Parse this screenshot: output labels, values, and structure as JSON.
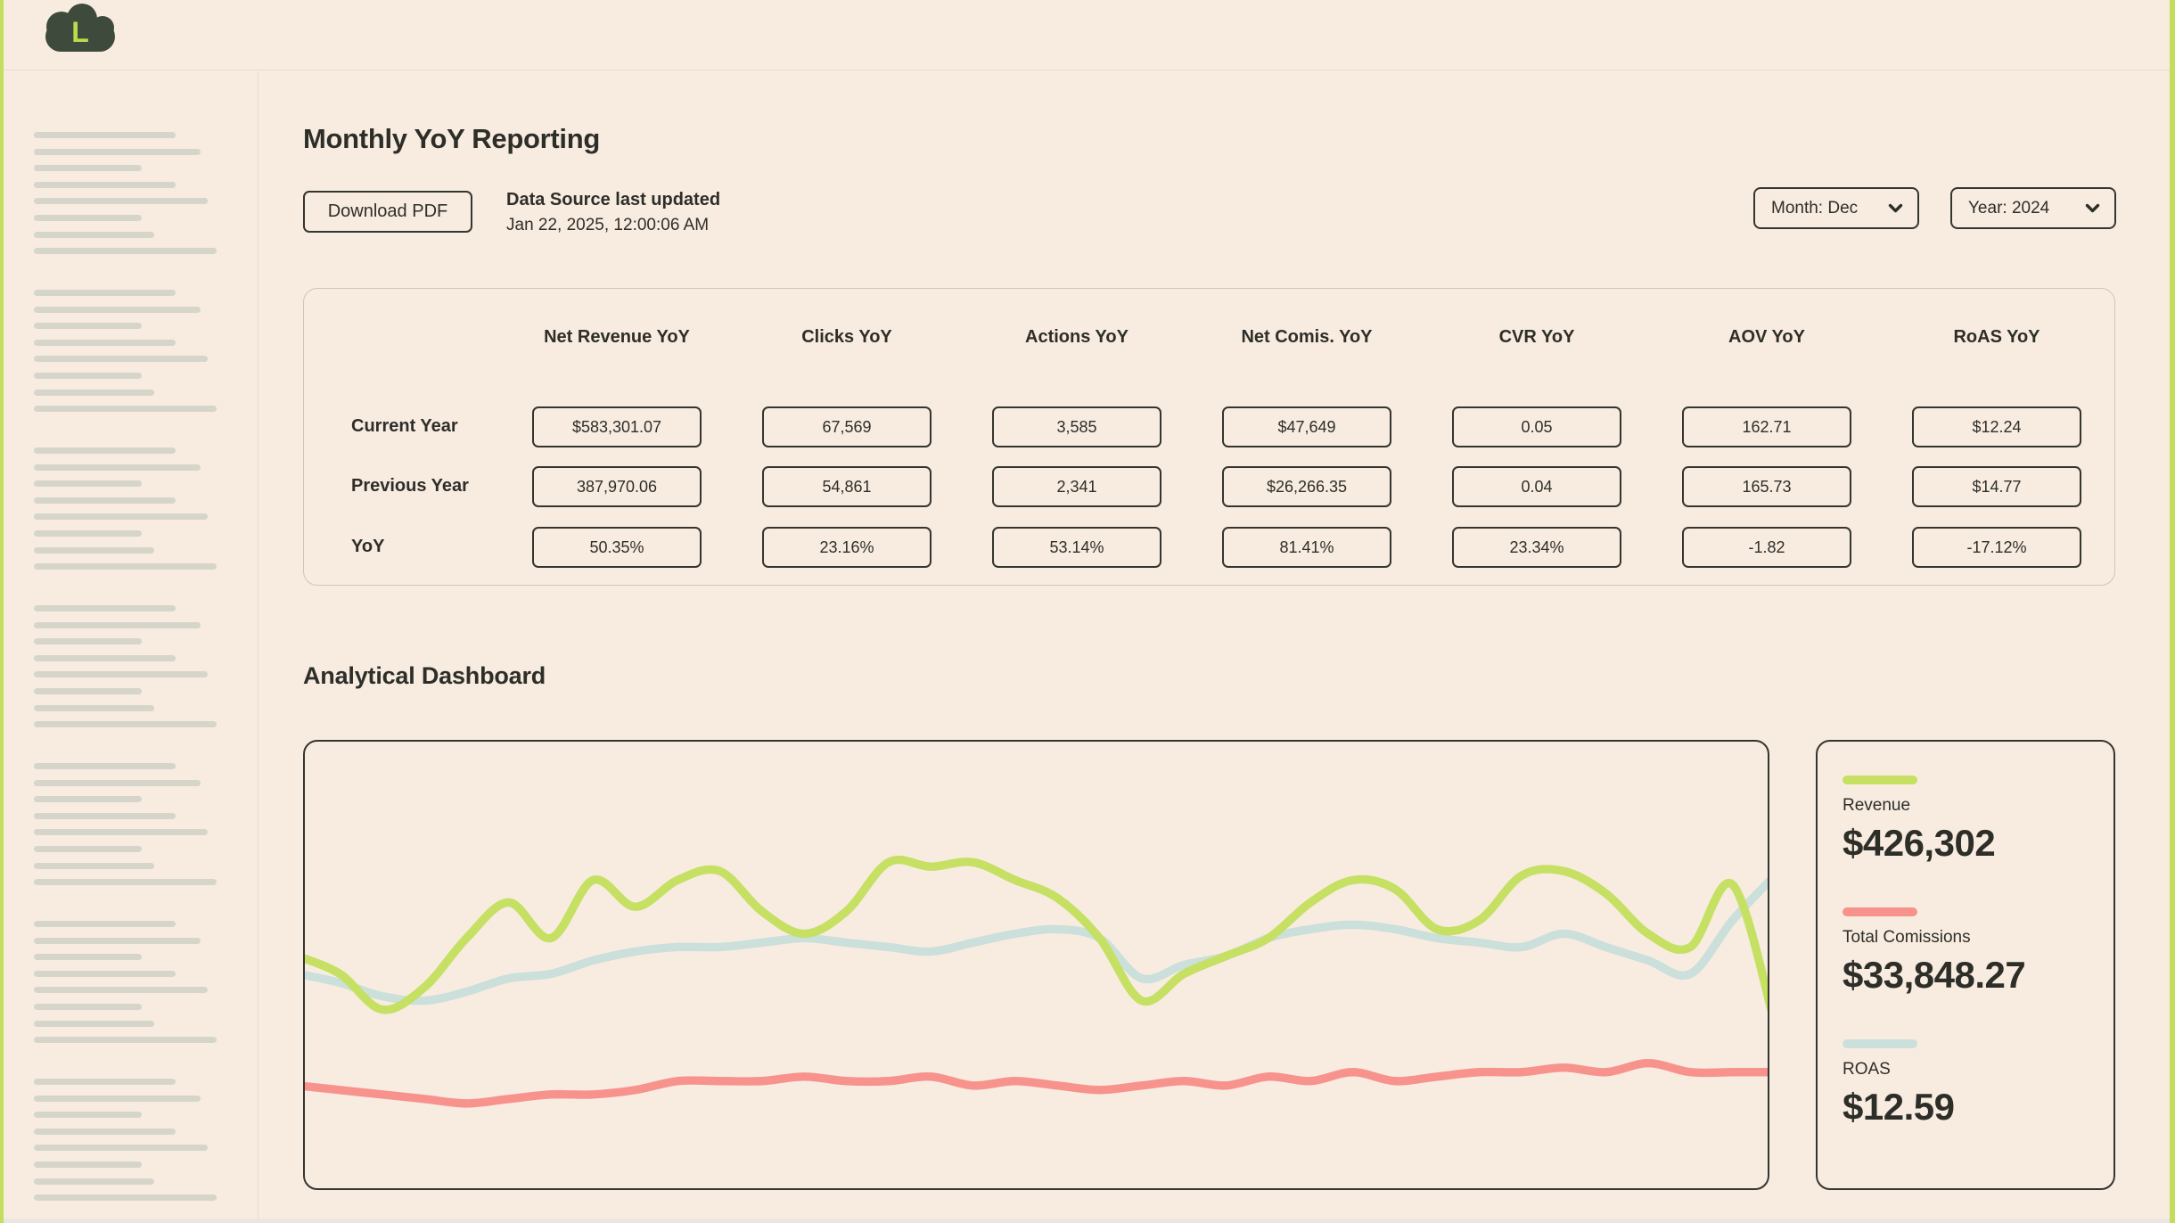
{
  "colors": {
    "background": "#f8ece1",
    "accent_lime": "#c3dd5f",
    "dark": "#2e2e29",
    "border_dark": "#35352f",
    "border_light": "#cfc5b7",
    "skeleton_gray": "#d6d5c9",
    "logo_cloud": "#3e4a3b",
    "logo_letter_color": "#b9dd4d"
  },
  "logo": {
    "letter": "L"
  },
  "sidebar": {
    "skeleton": {
      "line_widths": [
        159,
        187,
        121,
        159,
        195,
        121,
        135,
        205
      ],
      "group_count": 7,
      "group_tops": [
        68,
        245,
        422,
        599,
        776,
        953,
        1130
      ]
    }
  },
  "report": {
    "title": "Monthly YoY Reporting",
    "download_button_label": "Download PDF",
    "last_updated_label": "Data Source last updated",
    "last_updated_value": "Jan 22, 2025, 12:00:06 AM",
    "month_dropdown_value": "Month: Dec",
    "year_dropdown_value": "Year: 2024"
  },
  "yoy_table": {
    "columns": [
      "Net Revenue YoY",
      "Clicks YoY",
      "Actions YoY",
      "Net Comis. YoY",
      "CVR YoY",
      "AOV YoY",
      "RoAS YoY"
    ],
    "rows": [
      {
        "label": "Current Year",
        "values": [
          "$583,301.07",
          "67,569",
          "3,585",
          "$47,649",
          "0.05",
          "162.71",
          "$12.24"
        ]
      },
      {
        "label": "Previous Year",
        "values": [
          "387,970.06",
          "54,861",
          "2,341",
          "$26,266.35",
          "0.04",
          "165.73",
          "$14.77"
        ]
      },
      {
        "label": "YoY",
        "values": [
          "50.35%",
          "23.16%",
          "53.14%",
          "81.41%",
          "23.34%",
          "-1.82",
          "-17.12%"
        ]
      }
    ]
  },
  "dashboard": {
    "title": "Analytical Dashboard",
    "legend": [
      {
        "label": "Revenue",
        "value": "$426,302",
        "color": "#c5e063"
      },
      {
        "label": "Total Comissions",
        "value": "$33,848.27",
        "color": "#f7938c"
      },
      {
        "label": "ROAS",
        "value": "$12.59",
        "color": "#cbdfdb"
      }
    ]
  },
  "chart_data": {
    "type": "line",
    "title": "",
    "xlabel": "",
    "ylabel": "",
    "x_axis_visible": false,
    "y_axis_visible": false,
    "grid": false,
    "legend_position": "right-panel",
    "note": "No axes or tick labels are shown in the UI; series values are digitized as percent of plot height measured from the top edge (lower number = higher on screen). 36 evenly spaced x positions span the full plot width.",
    "series": [
      {
        "name": "Revenue",
        "color": "#c5e063",
        "y_percent_from_top": [
          48,
          52,
          60,
          55,
          44,
          36,
          44,
          31,
          37,
          31,
          29,
          38,
          43,
          38,
          27,
          28,
          27,
          31,
          35,
          44,
          58,
          52,
          48,
          44,
          36,
          31,
          33,
          42,
          40,
          30,
          29,
          34,
          43,
          46,
          32,
          63
        ]
      },
      {
        "name": "ROAS",
        "color": "#cbdfdb",
        "y_percent_from_top": [
          52,
          54,
          57,
          58,
          56,
          53,
          52,
          49,
          47,
          46,
          46,
          45,
          44,
          45,
          46,
          47,
          45,
          43,
          42,
          44,
          53,
          50,
          48,
          44,
          42,
          41,
          42,
          44,
          45,
          46,
          43,
          46,
          49,
          52,
          40,
          30
        ]
      },
      {
        "name": "Total Comissions",
        "color": "#f7938c",
        "y_percent_from_top": [
          77,
          78,
          79,
          80,
          81,
          80,
          79,
          79,
          78,
          76,
          76,
          76,
          75,
          76,
          76,
          75,
          77,
          76,
          77,
          78,
          77,
          76,
          77,
          75,
          76,
          74,
          76,
          75,
          74,
          74,
          73,
          74,
          72,
          74,
          74,
          74
        ]
      }
    ]
  }
}
